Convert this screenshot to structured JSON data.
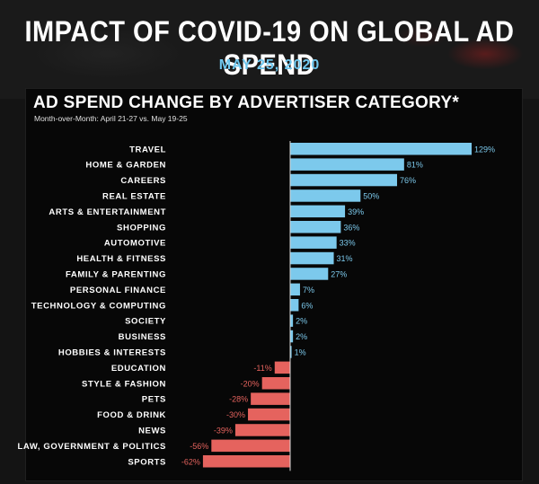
{
  "header": {
    "title": "IMPACT OF COVID-19 ON GLOBAL AD SPEND",
    "date": "MAY 25, 2020"
  },
  "colors": {
    "positive": "#7cc9ec",
    "negative": "#e5635e",
    "date": "#6fc7ee"
  },
  "chart_data": {
    "type": "bar",
    "orientation": "horizontal",
    "title": "AD SPEND CHANGE BY ADVERTISER CATEGORY*",
    "subtitle": "Month-over-Month: April 21-27 vs. May 19-25",
    "value_suffix": "%",
    "categories": [
      "TRAVEL",
      "HOME & GARDEN",
      "CAREERS",
      "REAL ESTATE",
      "ARTS & ENTERTAINMENT",
      "SHOPPING",
      "AUTOMOTIVE",
      "HEALTH & FITNESS",
      "FAMILY & PARENTING",
      "PERSONAL FINANCE",
      "TECHNOLOGY & COMPUTING",
      "SOCIETY",
      "BUSINESS",
      "HOBBIES & INTERESTS",
      "EDUCATION",
      "STYLE & FASHION",
      "PETS",
      "FOOD & DRINK",
      "NEWS",
      "LAW, GOVERNMENT & POLITICS",
      "SPORTS"
    ],
    "values": [
      129,
      81,
      76,
      50,
      39,
      36,
      33,
      31,
      27,
      7,
      6,
      2,
      2,
      1,
      -11,
      -20,
      -28,
      -30,
      -39,
      -56,
      -62
    ],
    "xlim": [
      -62,
      129
    ],
    "grid": false,
    "legend": "none"
  }
}
